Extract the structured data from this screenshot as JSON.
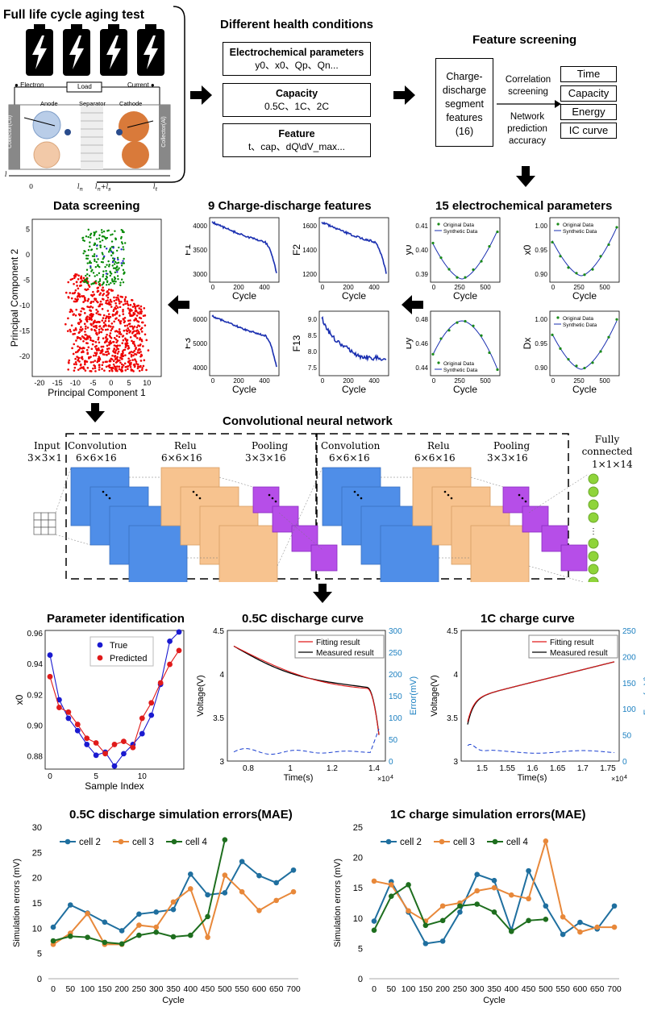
{
  "sections": {
    "lifecycle": {
      "title": "Full life cycle aging test",
      "electron": "Electron",
      "load": "Load",
      "current": "Current",
      "anode": "Anode",
      "separator": "Separator",
      "cathode": "Cathode",
      "collector_cu": "Collector(Cu)",
      "collector_al": "Collector(Al)",
      "axis_l": "l",
      "axis_0": "0",
      "axis_ln": "l",
      "axis_lnls": "l",
      "axis_lt": "l"
    },
    "health": {
      "title": "Different health conditions",
      "echem_title": "Electrochemical parameters",
      "echem_text": "y0、x0、Qp、Qn...",
      "cap_title": "Capacity",
      "cap_text": "0.5C、1C、2C",
      "feat_title": "Feature",
      "feat_text": "t、cap、dQ\\dV_max..."
    },
    "screening": {
      "title": "Feature screening",
      "segment": "Charge-discharge segment features (16)",
      "corr": "Correlation screening",
      "network": "Network prediction accuracy",
      "outputs": [
        "Time",
        "Capacity",
        "Energy",
        "IC curve"
      ]
    },
    "data_screening": {
      "title": "Data screening",
      "xlabel": "Principal Component 1",
      "ylabel": "Principal Component 2",
      "xticks": [
        "-20",
        "-15",
        "-10",
        "-5",
        "0",
        "5",
        "10"
      ],
      "yticks": [
        "5",
        "0",
        "-5",
        "-10",
        "-15",
        "-20"
      ]
    },
    "features9": {
      "title": "9 Charge-discharge features",
      "panels": [
        {
          "name": "F1",
          "yticks": [
            "4000",
            "3500",
            "3000"
          ],
          "xticks": [
            "0",
            "200",
            "400"
          ],
          "xlabel": "Cycle"
        },
        {
          "name": "F2",
          "yticks": [
            "1600",
            "1400",
            "1200"
          ],
          "xticks": [
            "0",
            "200",
            "400"
          ],
          "xlabel": "Cycle"
        },
        {
          "name": "F3",
          "yticks": [
            "6000",
            "5000",
            "4000"
          ],
          "xticks": [
            "0",
            "200",
            "400"
          ],
          "xlabel": "Cycle"
        },
        {
          "name": "F13",
          "yticks": [
            "9.0",
            "8.5",
            "8.0",
            "7.5"
          ],
          "xticks": [
            "0",
            "200",
            "400"
          ],
          "xlabel": "Cycle"
        }
      ]
    },
    "params15": {
      "title": "15  electrochemical parameters",
      "legend_orig": "Original Data",
      "legend_syn": "Synthetic Data",
      "panels": [
        {
          "name": "y0",
          "yticks": [
            "0.41",
            "0.40",
            "0.39"
          ],
          "xticks": [
            "0",
            "250",
            "500"
          ],
          "xlabel": "Cycle"
        },
        {
          "name": "x0",
          "yticks": [
            "1.00",
            "0.95",
            "0.90"
          ],
          "xticks": [
            "0",
            "250",
            "500"
          ],
          "xlabel": "Cycle"
        },
        {
          "name": "Dy",
          "yticks": [
            "0.48",
            "0.46",
            "0.44"
          ],
          "xticks": [
            "0",
            "250",
            "500"
          ],
          "xlabel": "Cycle"
        },
        {
          "name": "Dx",
          "yticks": [
            "1.00",
            "0.95",
            "0.90"
          ],
          "xticks": [
            "0",
            "250",
            "500"
          ],
          "xlabel": "Cycle"
        }
      ]
    },
    "cnn": {
      "title": "Convolutional neural network",
      "input": "Input",
      "input_dim": "3×3×1",
      "conv": "Convolution",
      "conv_dim": "6×6×16",
      "relu": "Relu",
      "relu_dim": "6×6×16",
      "pool": "Pooling",
      "pool_dim": "3×3×16",
      "fc": "Fully connected",
      "fc_dim": "1×1×14"
    },
    "param_id": {
      "title": "Parameter identification",
      "xlabel": "Sample Index",
      "ylabel": "x0",
      "legend_true": "True",
      "legend_pred": "Predicted",
      "yticks": [
        "0.96",
        "0.94",
        "0.92",
        "0.90",
        "0.88"
      ],
      "xticks": [
        "0",
        "5",
        "10"
      ]
    },
    "discharge": {
      "title": "0.5C discharge  curve",
      "xlabel": "Time(s)",
      "ylabel": "Voltage(V)",
      "y2label": "Error(mV)",
      "legend_fit": "Fitting result",
      "legend_meas": "Measured result",
      "xticks": [
        "0.8",
        "1",
        "1.2",
        "1.4"
      ],
      "yticks": [
        "4.5",
        "4",
        "3.5",
        "3"
      ],
      "y2ticks": [
        "300",
        "250",
        "200",
        "150",
        "100",
        "50",
        "0"
      ],
      "xmult": "×10"
    },
    "charge": {
      "title": "1C charge curve",
      "xlabel": "Time(s)",
      "ylabel": "Voltage(V)",
      "y2label": "Error(mV)",
      "legend_fit": "Fitting result",
      "legend_meas": "Measured result",
      "xticks": [
        "1.5",
        "1.55",
        "1.6",
        "1.65",
        "1.7",
        "1.75"
      ],
      "yticks": [
        "4.5",
        "4",
        "3.5",
        "3"
      ],
      "y2ticks": [
        "250",
        "200",
        "150",
        "100",
        "50",
        "0"
      ],
      "xmult": "×10"
    }
  },
  "chart_data": [
    {
      "type": "line",
      "title": "0.5C discharge  simulation errors(MAE)",
      "xlabel": "Cycle",
      "ylabel": "Simulation errors (mV)",
      "ylim": [
        0,
        30
      ],
      "xlim": [
        0,
        700
      ],
      "xticks": [
        0,
        50,
        100,
        150,
        200,
        250,
        300,
        350,
        400,
        450,
        500,
        550,
        600,
        650,
        700
      ],
      "yticks": [
        0,
        5,
        10,
        15,
        20,
        25,
        30
      ],
      "legend": "top-left",
      "series": [
        {
          "name": "cell 2",
          "color": "#1f6f9f",
          "x": [
            0,
            50,
            100,
            150,
            200,
            250,
            300,
            350,
            400,
            450,
            500,
            550,
            600,
            650,
            700
          ],
          "values": [
            10.2,
            14.6,
            13.0,
            11.2,
            9.5,
            12.8,
            13.2,
            13.7,
            20.7,
            16.6,
            17.0,
            23.2,
            20.4,
            19.0,
            21.5
          ]
        },
        {
          "name": "cell 3",
          "color": "#e8883a",
          "x": [
            0,
            50,
            100,
            150,
            200,
            250,
            300,
            350,
            400,
            450,
            500,
            550,
            600,
            650,
            700
          ],
          "values": [
            6.8,
            9.0,
            12.9,
            6.8,
            6.8,
            10.6,
            10.2,
            15.2,
            17.8,
            8.2,
            20.5,
            17.2,
            13.5,
            15.5,
            17.2
          ]
        },
        {
          "name": "cell 4",
          "color": "#1e6e1e",
          "x": [
            0,
            50,
            100,
            150,
            200,
            250,
            300,
            350,
            400,
            450,
            500
          ],
          "values": [
            7.5,
            8.4,
            8.2,
            7.2,
            6.9,
            8.6,
            9.2,
            8.3,
            8.6,
            12.3,
            27.5
          ]
        }
      ]
    },
    {
      "type": "line",
      "title": "1C charge  simulation errors(MAE)",
      "xlabel": "Cycle",
      "ylabel": "Simulation errors (mV)",
      "ylim": [
        0,
        25
      ],
      "xlim": [
        0,
        700
      ],
      "xticks": [
        0,
        50,
        100,
        150,
        200,
        250,
        300,
        350,
        400,
        450,
        500,
        550,
        600,
        650,
        700
      ],
      "yticks": [
        0,
        5,
        10,
        15,
        20,
        25
      ],
      "legend": "top-left",
      "series": [
        {
          "name": "cell 2",
          "color": "#1f6f9f",
          "x": [
            0,
            50,
            100,
            150,
            200,
            250,
            300,
            350,
            400,
            450,
            500,
            550,
            600,
            650,
            700
          ],
          "values": [
            9.5,
            16.0,
            11.0,
            5.8,
            6.2,
            11.0,
            17.2,
            16.2,
            8.0,
            17.8,
            12.0,
            7.3,
            9.3,
            8.2,
            12.0
          ]
        },
        {
          "name": "cell 3",
          "color": "#e8883a",
          "x": [
            0,
            50,
            100,
            150,
            200,
            250,
            300,
            350,
            400,
            450,
            500,
            550,
            600,
            650,
            700
          ],
          "values": [
            16.1,
            15.5,
            11.2,
            9.5,
            12.0,
            12.5,
            14.5,
            15.0,
            13.8,
            13.2,
            22.7,
            10.2,
            7.7,
            8.5,
            8.5
          ]
        },
        {
          "name": "cell 4",
          "color": "#1e6e1e",
          "x": [
            0,
            50,
            100,
            150,
            200,
            250,
            300,
            350,
            400,
            450,
            500
          ],
          "values": [
            8.0,
            13.6,
            15.5,
            8.8,
            9.6,
            12.0,
            12.3,
            11.0,
            7.8,
            9.6,
            9.8
          ]
        }
      ]
    }
  ]
}
